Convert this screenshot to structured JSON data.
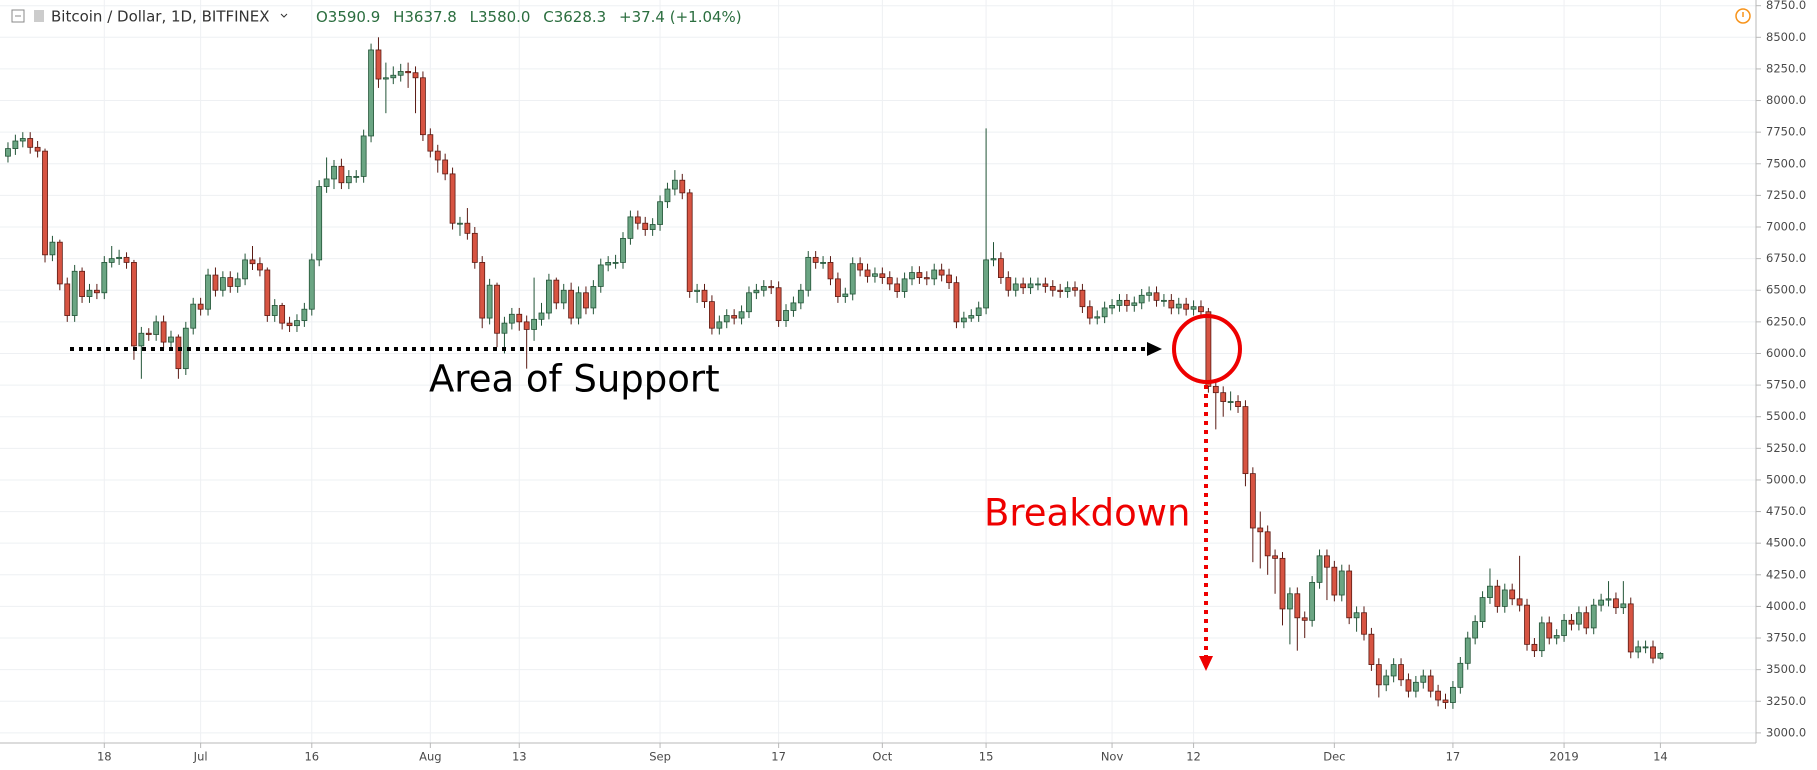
{
  "header": {
    "symbol": "Bitcoin / Dollar, 1D, BITFINEX",
    "values": [
      "O3590.9",
      "H3637.8",
      "L3580.0",
      "C3628.3",
      "+37.4 (+1.04%)"
    ]
  },
  "chart_data": {
    "type": "candlestick",
    "annotations": [
      "Area of Support",
      "Breakdown"
    ],
    "up_color": "#6ba583",
    "down_color": "#d75442",
    "ylim": [
      2920,
      8795
    ],
    "yticks": [
      {
        "value": 3000,
        "label": "3000.0"
      },
      {
        "value": 3250,
        "label": "3250.0"
      },
      {
        "value": 3500,
        "label": "3500.0"
      },
      {
        "value": 3750,
        "label": "3750.0"
      },
      {
        "value": 4000,
        "label": "4000.0"
      },
      {
        "value": 4250,
        "label": "4250.0"
      },
      {
        "value": 4500,
        "label": "4500.0"
      },
      {
        "value": 4750,
        "label": "4750.0"
      },
      {
        "value": 5000,
        "label": "5000.0"
      },
      {
        "value": 5250,
        "label": "5250.0"
      },
      {
        "value": 5500,
        "label": "5500.0"
      },
      {
        "value": 5750,
        "label": "5750.0"
      },
      {
        "value": 6000,
        "label": "6000.0"
      },
      {
        "value": 6250,
        "label": "6250.0"
      },
      {
        "value": 6500,
        "label": "6500.0"
      },
      {
        "value": 6750,
        "label": "6750.0"
      },
      {
        "value": 7000,
        "label": "7000.0"
      },
      {
        "value": 7250,
        "label": "7250.0"
      },
      {
        "value": 7500,
        "label": "7500.0"
      },
      {
        "value": 7750,
        "label": "7750.0"
      },
      {
        "value": 8000,
        "label": "8000.0"
      },
      {
        "value": 8250,
        "label": "8250.0"
      },
      {
        "value": 8500,
        "label": "8500.0"
      },
      {
        "value": 8750,
        "label": "8750.0"
      }
    ],
    "grid": true,
    "categories": [
      null,
      null,
      null,
      null,
      null,
      null,
      null,
      null,
      null,
      null,
      null,
      null,
      null,
      "18",
      null,
      null,
      null,
      null,
      null,
      null,
      null,
      null,
      null,
      null,
      null,
      null,
      "Jul",
      null,
      null,
      null,
      null,
      null,
      null,
      null,
      null,
      null,
      null,
      null,
      null,
      null,
      null,
      "16",
      null,
      null,
      null,
      null,
      null,
      null,
      null,
      null,
      null,
      null,
      null,
      null,
      null,
      null,
      null,
      "Aug",
      null,
      null,
      null,
      null,
      null,
      null,
      null,
      null,
      null,
      null,
      null,
      "13",
      null,
      null,
      null,
      null,
      null,
      null,
      null,
      null,
      null,
      null,
      null,
      null,
      null,
      null,
      null,
      null,
      null,
      null,
      "Sep",
      null,
      null,
      null,
      null,
      null,
      null,
      null,
      null,
      null,
      null,
      null,
      null,
      null,
      null,
      null,
      "17",
      null,
      null,
      null,
      null,
      null,
      null,
      null,
      null,
      null,
      null,
      null,
      null,
      null,
      "Oct",
      null,
      null,
      null,
      null,
      null,
      null,
      null,
      null,
      null,
      null,
      null,
      null,
      null,
      "15",
      null,
      null,
      null,
      null,
      null,
      null,
      null,
      null,
      null,
      null,
      null,
      null,
      null,
      null,
      null,
      null,
      "Nov",
      null,
      null,
      null,
      null,
      null,
      null,
      null,
      null,
      null,
      null,
      "12",
      null,
      null,
      null,
      null,
      null,
      null,
      null,
      null,
      null,
      null,
      null,
      null,
      null,
      null,
      null,
      null,
      null,
      null,
      "Dec",
      null,
      null,
      null,
      null,
      null,
      null,
      null,
      null,
      null,
      null,
      null,
      null,
      null,
      null,
      null,
      "17",
      null,
      null,
      null,
      null,
      null,
      null,
      null,
      null,
      null,
      null,
      null,
      null,
      null,
      null,
      "2019",
      null,
      null,
      null,
      null,
      null,
      null,
      null,
      null,
      null,
      null,
      null,
      null,
      "14"
    ],
    "open": [
      7560,
      7620,
      7680,
      7700,
      7630,
      7600,
      6780,
      6880,
      6550,
      6300,
      6650,
      6450,
      6500,
      6480,
      6720,
      6750,
      6760,
      6720,
      6060,
      6160,
      6150,
      6250,
      6090,
      6130,
      5880,
      6200,
      6390,
      6350,
      6620,
      6500,
      6600,
      6530,
      6590,
      6740,
      6710,
      6660,
      6300,
      6380,
      6240,
      6220,
      6260,
      6350,
      6740,
      7320,
      7380,
      7480,
      7350,
      7400,
      7400,
      7720,
      8400,
      8170,
      8180,
      8200,
      8230,
      8220,
      8180,
      7730,
      7600,
      7530,
      7420,
      7030,
      7030,
      6950,
      6720,
      6280,
      6540,
      6160,
      6240,
      6310,
      6250,
      6190,
      6270,
      6320,
      6580,
      6400,
      6500,
      6280,
      6480,
      6360,
      6530,
      6700,
      6720,
      6720,
      6910,
      7080,
      7030,
      6980,
      7020,
      7200,
      7300,
      7370,
      7270,
      6490,
      6500,
      6410,
      6200,
      6250,
      6300,
      6280,
      6330,
      6480,
      6500,
      6530,
      6520,
      6260,
      6340,
      6400,
      6500,
      6760,
      6720,
      6720,
      6590,
      6450,
      6470,
      6710,
      6660,
      6610,
      6630,
      6600,
      6550,
      6490,
      6590,
      6640,
      6600,
      6590,
      6660,
      6620,
      6560,
      6250,
      6280,
      6300,
      6360,
      6740,
      6750,
      6600,
      6500,
      6550,
      6520,
      6550,
      6550,
      6530,
      6500,
      6490,
      6520,
      6500,
      6370,
      6280,
      6290,
      6360,
      6380,
      6420,
      6380,
      6400,
      6460,
      6480,
      6420,
      6420,
      6360,
      6390,
      6350,
      6370,
      6330,
      5740,
      5690,
      5620,
      5620,
      5580,
      5050,
      4620,
      4590,
      4400,
      4380,
      3980,
      4100,
      3910,
      3890,
      4190,
      4400,
      4310,
      4090,
      4280,
      3910,
      3950,
      3780,
      3540,
      3380,
      3450,
      3540,
      3420,
      3330,
      3400,
      3450,
      3330,
      3260,
      3240,
      3360,
      3550,
      3750,
      3880,
      4070,
      4160,
      4000,
      4130,
      4060,
      4010,
      3700,
      3650,
      3870,
      3750,
      3770,
      3890,
      3860,
      3950,
      3830,
      4010,
      4050,
      4060,
      3990,
      4020,
      3640,
      3680,
      3680,
      3590.9
    ],
    "high": [
      7670,
      7730,
      7750,
      7750,
      7680,
      7620,
      6930,
      6900,
      6600,
      6700,
      6680,
      6550,
      6550,
      6770,
      6850,
      6820,
      6800,
      6740,
      6210,
      6200,
      6300,
      6300,
      6180,
      6150,
      6250,
      6440,
      6440,
      6670,
      6680,
      6650,
      6650,
      6640,
      6790,
      6850,
      6760,
      6680,
      6430,
      6400,
      6290,
      6310,
      6400,
      6790,
      7370,
      7550,
      7530,
      7540,
      7450,
      7450,
      7770,
      8450,
      8500,
      8300,
      8270,
      8290,
      8300,
      8270,
      8230,
      7780,
      7650,
      7580,
      7470,
      7080,
      7150,
      7000,
      6770,
      6590,
      6560,
      6290,
      6360,
      6360,
      6300,
      6600,
      6400,
      6630,
      6600,
      6550,
      6560,
      6530,
      6530,
      6580,
      6750,
      6770,
      6780,
      6960,
      7130,
      7130,
      7080,
      7070,
      7250,
      7350,
      7450,
      7420,
      7300,
      6550,
      6550,
      6460,
      6300,
      6350,
      6350,
      6380,
      6530,
      6550,
      6580,
      6580,
      6570,
      6390,
      6450,
      6550,
      6810,
      6810,
      6770,
      6770,
      6640,
      6520,
      6760,
      6760,
      6710,
      6680,
      6680,
      6650,
      6600,
      6640,
      6690,
      6690,
      6650,
      6710,
      6710,
      6670,
      6610,
      6330,
      6350,
      6410,
      7780,
      6880,
      6800,
      6650,
      6600,
      6600,
      6600,
      6600,
      6600,
      6580,
      6550,
      6570,
      6570,
      6550,
      6420,
      6340,
      6410,
      6430,
      6470,
      6470,
      6450,
      6510,
      6530,
      6530,
      6470,
      6470,
      6440,
      6440,
      6420,
      6420,
      6360,
      5790,
      5740,
      5700,
      5670,
      5630,
      5100,
      4750,
      4640,
      4450,
      4430,
      4150,
      4150,
      3960,
      4240,
      4450,
      4450,
      4360,
      4330,
      4330,
      4000,
      4000,
      3830,
      3590,
      3500,
      3590,
      3590,
      3470,
      3450,
      3500,
      3500,
      3380,
      3310,
      3410,
      3600,
      3800,
      3930,
      4120,
      4300,
      4210,
      4180,
      4180,
      4400,
      4060,
      3750,
      3920,
      3920,
      3820,
      3940,
      3940,
      4000,
      4000,
      4060,
      4100,
      4200,
      4110,
      4200,
      4070,
      3730,
      3730,
      3730,
      3637.8
    ],
    "low": [
      7510,
      7570,
      7630,
      7580,
      7550,
      6720,
      6730,
      6500,
      6250,
      6250,
      6400,
      6400,
      6430,
      6430,
      6680,
      6700,
      6670,
      5950,
      5800,
      6100,
      6100,
      6040,
      6040,
      5800,
      5830,
      6150,
      6300,
      6300,
      6450,
      6450,
      6480,
      6480,
      6540,
      6660,
      6610,
      6250,
      6250,
      6190,
      6170,
      6170,
      6210,
      6300,
      6690,
      7270,
      7300,
      7300,
      7300,
      7350,
      7350,
      7670,
      8100,
      7900,
      8130,
      8150,
      8100,
      7900,
      7680,
      7550,
      7430,
      7370,
      6980,
      6930,
      6900,
      6670,
      6200,
      6230,
      6050,
      6000,
      6190,
      6180,
      5880,
      6100,
      6220,
      6270,
      6350,
      6350,
      6230,
      6230,
      6310,
      6310,
      6480,
      6650,
      6670,
      6670,
      6860,
      6980,
      6930,
      6930,
      6970,
      7150,
      7250,
      7220,
      6440,
      6400,
      6360,
      6150,
      6150,
      6200,
      6230,
      6230,
      6280,
      6430,
      6450,
      6470,
      6210,
      6210,
      6290,
      6350,
      6450,
      6670,
      6670,
      6540,
      6400,
      6400,
      6420,
      6610,
      6560,
      6560,
      6550,
      6500,
      6440,
      6440,
      6540,
      6550,
      6540,
      6540,
      6570,
      6510,
      6200,
      6200,
      6250,
      6250,
      6310,
      6690,
      6550,
      6450,
      6450,
      6470,
      6470,
      6500,
      6480,
      6450,
      6440,
      6440,
      6450,
      6320,
      6230,
      6230,
      6240,
      6310,
      6330,
      6330,
      6330,
      6350,
      6410,
      6370,
      6370,
      6310,
      6310,
      6300,
      6300,
      6280,
      5690,
      5400,
      5500,
      5550,
      5530,
      4950,
      4350,
      4300,
      4250,
      4100,
      3850,
      3700,
      3650,
      3750,
      3840,
      4140,
      4050,
      4040,
      4040,
      3860,
      3800,
      3730,
      3490,
      3280,
      3330,
      3400,
      3370,
      3280,
      3280,
      3350,
      3280,
      3210,
      3190,
      3190,
      3310,
      3500,
      3700,
      3830,
      4020,
      3950,
      3950,
      4010,
      3960,
      3650,
      3600,
      3600,
      3700,
      3700,
      3720,
      3810,
      3810,
      3780,
      3780,
      3960,
      4000,
      3940,
      3940,
      3590,
      3590,
      3630,
      3550,
      3580.0
    ],
    "close": [
      7620,
      7680,
      7700,
      7630,
      7600,
      6780,
      6880,
      6550,
      6300,
      6650,
      6450,
      6500,
      6480,
      6720,
      6750,
      6760,
      6720,
      6060,
      6160,
      6150,
      6250,
      6090,
      6130,
      5880,
      6200,
      6390,
      6350,
      6620,
      6500,
      6600,
      6530,
      6590,
      6740,
      6710,
      6660,
      6300,
      6380,
      6240,
      6220,
      6260,
      6350,
      6740,
      7320,
      7380,
      7480,
      7350,
      7400,
      7400,
      7720,
      8400,
      8170,
      8180,
      8200,
      8230,
      8220,
      8180,
      7730,
      7600,
      7530,
      7420,
      7030,
      7030,
      6950,
      6720,
      6280,
      6540,
      6160,
      6240,
      6310,
      6250,
      6190,
      6270,
      6320,
      6580,
      6400,
      6500,
      6280,
      6480,
      6360,
      6530,
      6700,
      6720,
      6720,
      6910,
      7080,
      7030,
      6980,
      7020,
      7200,
      7300,
      7370,
      7270,
      6490,
      6500,
      6410,
      6200,
      6250,
      6300,
      6280,
      6330,
      6480,
      6500,
      6530,
      6520,
      6260,
      6340,
      6400,
      6500,
      6760,
      6720,
      6720,
      6590,
      6450,
      6470,
      6710,
      6660,
      6610,
      6630,
      6600,
      6550,
      6490,
      6590,
      6640,
      6600,
      6590,
      6660,
      6620,
      6560,
      6250,
      6280,
      6300,
      6360,
      6740,
      6750,
      6600,
      6500,
      6550,
      6520,
      6550,
      6550,
      6530,
      6500,
      6490,
      6520,
      6500,
      6370,
      6280,
      6290,
      6360,
      6380,
      6420,
      6380,
      6400,
      6460,
      6480,
      6420,
      6420,
      6360,
      6390,
      6350,
      6370,
      6330,
      5740,
      5690,
      5620,
      5620,
      5580,
      5050,
      4620,
      4590,
      4400,
      4380,
      3980,
      4100,
      3910,
      3890,
      4190,
      4400,
      4310,
      4090,
      4280,
      3910,
      3950,
      3780,
      3540,
      3380,
      3450,
      3540,
      3420,
      3330,
      3400,
      3450,
      3330,
      3260,
      3240,
      3360,
      3550,
      3750,
      3880,
      4070,
      4160,
      4000,
      4130,
      4060,
      4010,
      3700,
      3650,
      3870,
      3750,
      3770,
      3890,
      3860,
      3950,
      3830,
      4010,
      4050,
      4060,
      3990,
      4020,
      3640,
      3680,
      3680,
      3590.9,
      3628.3
    ]
  }
}
